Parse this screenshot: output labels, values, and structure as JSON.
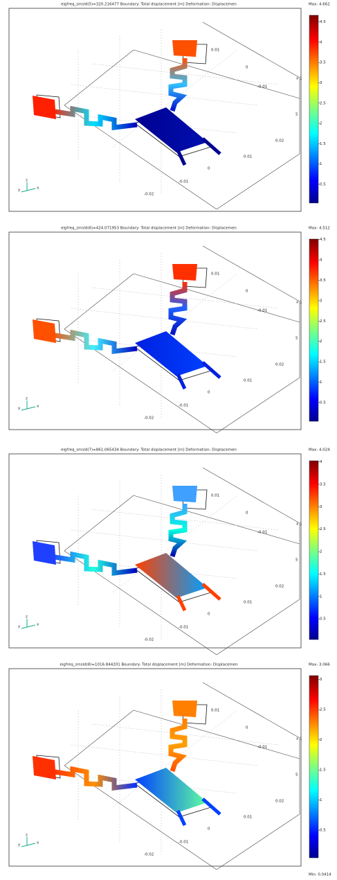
{
  "panels": [
    {
      "title": "eigfreq_smsld(5)=320.216477    Boundary: Total displacement [m]    Deformation: Displacemen",
      "max_label": "Max: 4.662",
      "colorbar": {
        "range": [
          0.04,
          4.662
        ],
        "ticks": [
          0.5,
          1,
          1.5,
          2,
          2.5,
          3,
          3.5,
          4,
          4.5
        ]
      }
    },
    {
      "title": "eigfreq_smsld(6)=424.071953    Boundary: Total displacement [m]    Deformation: Displacemen",
      "max_label": "Max: 4.512",
      "colorbar": {
        "range": [
          0.04,
          4.512
        ],
        "ticks": [
          0.5,
          1,
          1.5,
          2,
          2.5,
          3,
          3.5,
          4,
          4.5
        ]
      }
    },
    {
      "title": "eigfreq_smsld(7)=861.065434    Boundary: Total displacement [m]    Deformation: Displacemen",
      "max_label": "Max: 4.024",
      "colorbar": {
        "range": [
          0.04,
          4.024
        ],
        "ticks": [
          0.5,
          1,
          1.5,
          2,
          2.5,
          3,
          3.5,
          4
        ]
      }
    },
    {
      "title": "eigfreq_smsld(8)=1016.844201    Boundary: Total displacement [m]    Deformation: Displacemen",
      "max_label": "Max: 3.066",
      "colorbar": {
        "range": [
          0.0414,
          3.066
        ],
        "ticks": [
          0.5,
          1,
          1.5,
          2,
          2.5,
          3
        ]
      }
    }
  ],
  "axis_labels": [
    "0.01",
    "0",
    "-0.01",
    "x 1",
    "5",
    "0.02",
    "0.01",
    "0",
    "-0.01",
    "-0.02"
  ],
  "axis_triad": [
    "z",
    "y",
    "x"
  ],
  "min_label": "Min: 0.0414"
}
